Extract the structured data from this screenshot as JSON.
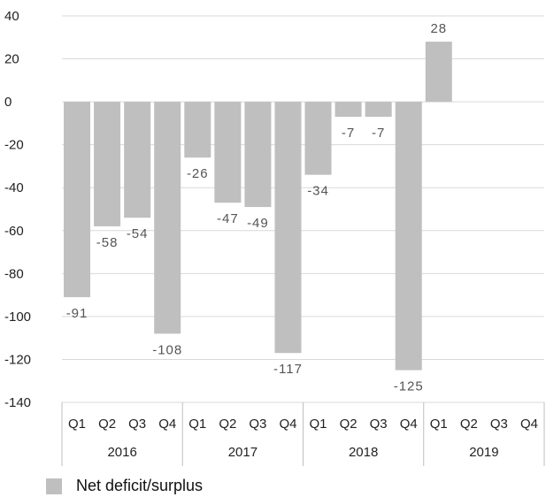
{
  "chart_data": {
    "type": "bar",
    "quarters": [
      "Q1",
      "Q2",
      "Q3",
      "Q4",
      "Q1",
      "Q2",
      "Q3",
      "Q4",
      "Q1",
      "Q2",
      "Q3",
      "Q4",
      "Q1",
      "Q2",
      "Q3",
      "Q4"
    ],
    "years": [
      "2016",
      "2017",
      "2018",
      "2019"
    ],
    "series": [
      {
        "name": "Net deficit/surplus",
        "values": [
          -91,
          -58,
          -54,
          -108,
          -26,
          -47,
          -49,
          -117,
          -34,
          -7,
          -7,
          -125,
          28,
          null,
          null,
          null
        ],
        "labels": [
          "-91",
          "-58",
          "-54",
          "-108",
          "-26",
          "-47",
          "-49",
          "-117",
          "-34",
          "-7",
          "-7",
          "-125",
          "28",
          "",
          "",
          ""
        ]
      }
    ],
    "yticks": [
      40,
      20,
      0,
      -20,
      -40,
      -60,
      -80,
      -100,
      -120,
      -140
    ],
    "ylim": [
      -140,
      40
    ],
    "grid": true,
    "legend_position": "bottom-left",
    "colors": {
      "bar": "#bfbfbf",
      "grid": "#d9d9d9",
      "axis": "#bfbfbf"
    }
  }
}
